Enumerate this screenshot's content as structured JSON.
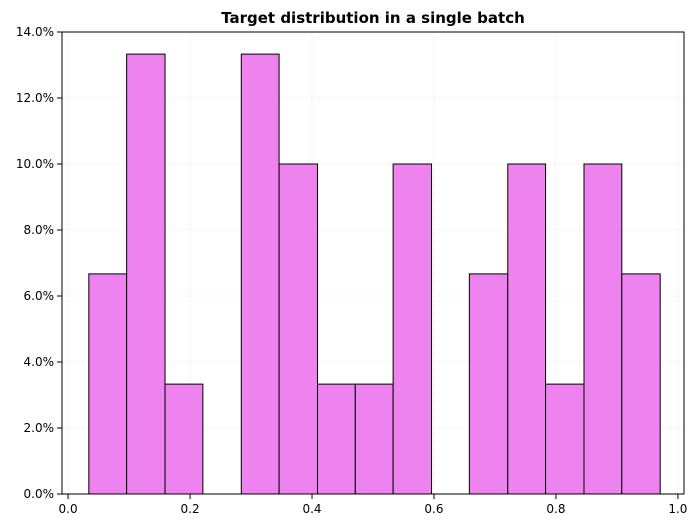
{
  "chart_data": {
    "type": "bar",
    "subtype": "histogram",
    "title": "Target distribution in a single batch",
    "xlabel": "",
    "ylabel": "",
    "xlim": [
      -0.01,
      1.01
    ],
    "ylim": [
      0,
      14.0
    ],
    "x_ticks": [
      0.0,
      0.2,
      0.4,
      0.6,
      0.8,
      1.0
    ],
    "x_tick_labels": [
      "0.0",
      "0.2",
      "0.4",
      "0.6",
      "0.8",
      "1.0"
    ],
    "y_ticks": [
      0,
      2,
      4,
      6,
      8,
      10,
      12,
      14
    ],
    "y_tick_labels": [
      "0.0%",
      "2.0%",
      "4.0%",
      "6.0%",
      "8.0%",
      "10.0%",
      "12.0%",
      "14.0%"
    ],
    "y_unit": "percent",
    "grid": true,
    "bar_color": "#ee82ee",
    "edge_color": "#000000",
    "bins": [
      {
        "start": 0.034,
        "end": 0.096,
        "value": 6.67
      },
      {
        "start": 0.096,
        "end": 0.159,
        "value": 13.33
      },
      {
        "start": 0.159,
        "end": 0.221,
        "value": 3.33
      },
      {
        "start": 0.221,
        "end": 0.284,
        "value": 0.0
      },
      {
        "start": 0.284,
        "end": 0.346,
        "value": 13.33
      },
      {
        "start": 0.346,
        "end": 0.409,
        "value": 10.0
      },
      {
        "start": 0.409,
        "end": 0.471,
        "value": 3.33
      },
      {
        "start": 0.471,
        "end": 0.533,
        "value": 3.33
      },
      {
        "start": 0.533,
        "end": 0.596,
        "value": 10.0
      },
      {
        "start": 0.596,
        "end": 0.658,
        "value": 0.0
      },
      {
        "start": 0.658,
        "end": 0.721,
        "value": 6.67
      },
      {
        "start": 0.721,
        "end": 0.783,
        "value": 10.0
      },
      {
        "start": 0.783,
        "end": 0.846,
        "value": 3.33
      },
      {
        "start": 0.846,
        "end": 0.908,
        "value": 10.0
      },
      {
        "start": 0.908,
        "end": 0.971,
        "value": 6.67
      }
    ]
  }
}
